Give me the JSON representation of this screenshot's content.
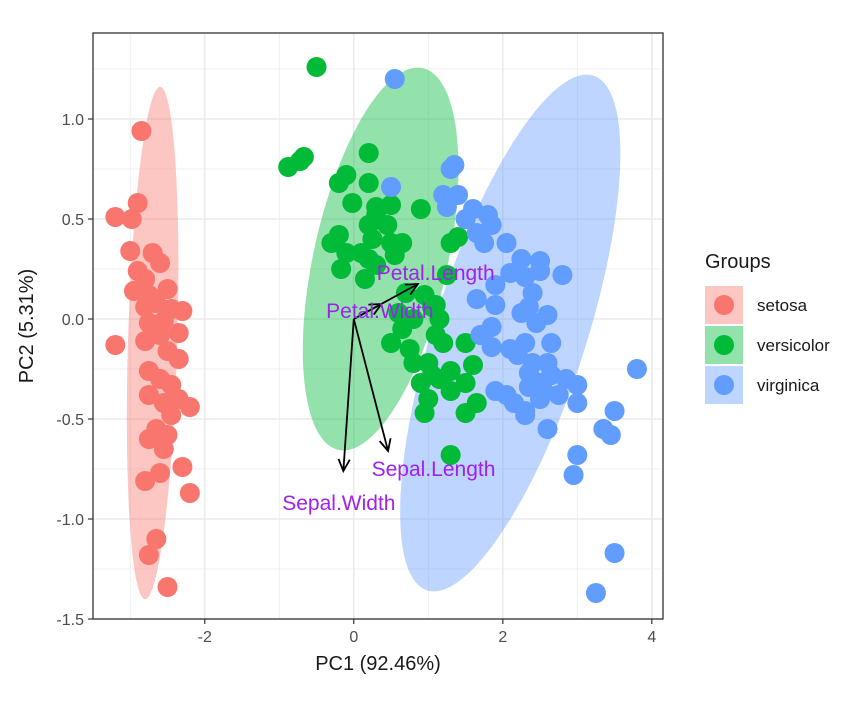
{
  "chart_data": {
    "type": "scatter",
    "title": "",
    "xlabel": "PC1 (92.46%)",
    "ylabel": "PC2 (5.31%)",
    "xlim": [
      -3.5,
      4.15
    ],
    "ylim": [
      -1.5,
      1.43
    ],
    "x_ticks": [
      -2,
      0,
      2,
      4
    ],
    "x_tick_labels": [
      "-2",
      "0",
      "2",
      "4"
    ],
    "y_ticks": [
      -1.5,
      -1.0,
      -0.5,
      0.0,
      0.5,
      1.0
    ],
    "y_tick_labels": [
      "-1.5",
      "-1.0",
      "-0.5",
      "0.0",
      "0.5",
      "1.0"
    ],
    "grid": true,
    "legend": {
      "title": "Groups",
      "position": "right",
      "entries": [
        {
          "label": "setosa",
          "color": "#f8766d"
        },
        {
          "label": "versicolor",
          "color": "#00ba38"
        },
        {
          "label": "virginica",
          "color": "#619cff"
        }
      ]
    },
    "series": [
      {
        "name": "setosa",
        "color": "#f8766d",
        "points": [
          [
            -2.85,
            0.94
          ],
          [
            -3.2,
            0.51
          ],
          [
            -2.9,
            0.58
          ],
          [
            -2.98,
            0.5
          ],
          [
            -3.0,
            0.34
          ],
          [
            -2.7,
            0.33
          ],
          [
            -2.9,
            0.24
          ],
          [
            -2.8,
            0.2
          ],
          [
            -2.6,
            0.28
          ],
          [
            -2.95,
            0.14
          ],
          [
            -2.75,
            0.12
          ],
          [
            -2.5,
            0.15
          ],
          [
            -2.8,
            0.06
          ],
          [
            -2.65,
            0.08
          ],
          [
            -2.45,
            0.05
          ],
          [
            -2.3,
            0.04
          ],
          [
            -2.75,
            -0.02
          ],
          [
            -2.55,
            -0.01
          ],
          [
            -3.2,
            -0.13
          ],
          [
            -2.6,
            -0.08
          ],
          [
            -2.35,
            -0.07
          ],
          [
            -2.8,
            -0.11
          ],
          [
            -2.5,
            -0.16
          ],
          [
            -2.35,
            -0.2
          ],
          [
            -2.75,
            -0.26
          ],
          [
            -2.6,
            -0.3
          ],
          [
            -2.45,
            -0.33
          ],
          [
            -2.75,
            -0.38
          ],
          [
            -2.55,
            -0.42
          ],
          [
            -2.35,
            -0.4
          ],
          [
            -2.2,
            -0.44
          ],
          [
            -2.45,
            -0.48
          ],
          [
            -2.65,
            -0.55
          ],
          [
            -2.5,
            -0.58
          ],
          [
            -2.75,
            -0.6
          ],
          [
            -2.55,
            -0.65
          ],
          [
            -2.3,
            -0.74
          ],
          [
            -2.6,
            -0.77
          ],
          [
            -2.8,
            -0.81
          ],
          [
            -2.2,
            -0.87
          ],
          [
            -2.65,
            -1.1
          ],
          [
            -2.75,
            -1.18
          ],
          [
            -2.5,
            -1.34
          ]
        ]
      },
      {
        "name": "versicolor",
        "color": "#00ba38",
        "points": [
          [
            -0.5,
            1.26
          ],
          [
            -0.72,
            0.79
          ],
          [
            -0.67,
            0.81
          ],
          [
            -0.88,
            0.76
          ],
          [
            0.2,
            0.83
          ],
          [
            -0.2,
            0.68
          ],
          [
            -0.1,
            0.72
          ],
          [
            0.2,
            0.68
          ],
          [
            0.5,
            0.57
          ],
          [
            -0.02,
            0.58
          ],
          [
            0.3,
            0.56
          ],
          [
            0.3,
            0.52
          ],
          [
            0.45,
            0.47
          ],
          [
            0.2,
            0.47
          ],
          [
            -0.2,
            0.42
          ],
          [
            0.25,
            0.4
          ],
          [
            0.5,
            0.38
          ],
          [
            0.9,
            0.55
          ],
          [
            0.65,
            0.38
          ],
          [
            -0.3,
            0.38
          ],
          [
            -0.1,
            0.33
          ],
          [
            0.1,
            0.33
          ],
          [
            0.3,
            0.27
          ],
          [
            0.2,
            0.3
          ],
          [
            -0.17,
            0.25
          ],
          [
            0.15,
            0.2
          ],
          [
            0.55,
            0.32
          ],
          [
            1.3,
            0.38
          ],
          [
            1.4,
            0.41
          ],
          [
            1.25,
            0.22
          ],
          [
            0.7,
            0.13
          ],
          [
            0.95,
            0.12
          ],
          [
            1.1,
            0.07
          ],
          [
            0.6,
            0.03
          ],
          [
            0.8,
            0.0
          ],
          [
            1.05,
            0.06
          ],
          [
            1.15,
            0.0
          ],
          [
            0.65,
            -0.05
          ],
          [
            1.1,
            -0.08
          ],
          [
            0.5,
            -0.12
          ],
          [
            0.75,
            -0.15
          ],
          [
            1.2,
            -0.12
          ],
          [
            1.5,
            -0.12
          ],
          [
            0.8,
            -0.22
          ],
          [
            1.0,
            -0.22
          ],
          [
            1.05,
            -0.28
          ],
          [
            1.3,
            -0.26
          ],
          [
            1.6,
            -0.23
          ],
          [
            0.9,
            -0.32
          ],
          [
            1.15,
            -0.3
          ],
          [
            1.5,
            -0.32
          ],
          [
            1.3,
            -0.36
          ],
          [
            1.0,
            -0.4
          ],
          [
            1.65,
            -0.42
          ],
          [
            0.95,
            -0.47
          ],
          [
            1.5,
            -0.47
          ],
          [
            1.3,
            -0.68
          ]
        ]
      },
      {
        "name": "virginica",
        "color": "#619cff",
        "points": [
          [
            0.55,
            1.2
          ],
          [
            1.35,
            0.77
          ],
          [
            1.3,
            0.75
          ],
          [
            0.5,
            0.66
          ],
          [
            1.2,
            0.62
          ],
          [
            1.4,
            0.62
          ],
          [
            1.25,
            0.56
          ],
          [
            1.6,
            0.55
          ],
          [
            1.8,
            0.52
          ],
          [
            1.5,
            0.5
          ],
          [
            1.85,
            0.47
          ],
          [
            1.65,
            0.43
          ],
          [
            1.75,
            0.38
          ],
          [
            2.05,
            0.38
          ],
          [
            2.25,
            0.3
          ],
          [
            2.5,
            0.29
          ],
          [
            2.1,
            0.23
          ],
          [
            2.3,
            0.21
          ],
          [
            2.5,
            0.24
          ],
          [
            2.8,
            0.22
          ],
          [
            1.9,
            0.17
          ],
          [
            2.4,
            0.13
          ],
          [
            1.65,
            0.1
          ],
          [
            1.9,
            0.07
          ],
          [
            2.35,
            0.06
          ],
          [
            2.25,
            0.03
          ],
          [
            2.6,
            0.02
          ],
          [
            2.45,
            -0.02
          ],
          [
            1.85,
            -0.04
          ],
          [
            1.7,
            -0.08
          ],
          [
            2.3,
            -0.12
          ],
          [
            2.65,
            -0.12
          ],
          [
            1.85,
            -0.14
          ],
          [
            2.1,
            -0.15
          ],
          [
            2.2,
            -0.18
          ],
          [
            2.4,
            -0.22
          ],
          [
            2.6,
            -0.22
          ],
          [
            2.35,
            -0.27
          ],
          [
            2.65,
            -0.28
          ],
          [
            2.85,
            -0.3
          ],
          [
            2.5,
            -0.32
          ],
          [
            2.35,
            -0.34
          ],
          [
            1.9,
            -0.36
          ],
          [
            2.05,
            -0.38
          ],
          [
            2.55,
            -0.36
          ],
          [
            2.15,
            -0.42
          ],
          [
            2.75,
            -0.38
          ],
          [
            3.0,
            -0.33
          ],
          [
            3.8,
            -0.25
          ],
          [
            2.3,
            -0.46
          ],
          [
            2.5,
            -0.4
          ],
          [
            3.0,
            -0.42
          ],
          [
            2.3,
            -0.48
          ],
          [
            3.5,
            -0.46
          ],
          [
            2.6,
            -0.55
          ],
          [
            3.35,
            -0.55
          ],
          [
            3.45,
            -0.58
          ],
          [
            3.0,
            -0.68
          ],
          [
            2.95,
            -0.78
          ],
          [
            3.5,
            -1.17
          ],
          [
            3.25,
            -1.37
          ]
        ]
      }
    ],
    "ellipses": [
      {
        "group": "setosa",
        "cx": -2.7,
        "cy": -0.12,
        "semi_major": 1.285,
        "semi_minor": 0.33,
        "angle_deg": 85.2,
        "color": "#f8766d"
      },
      {
        "group": "versicolor",
        "cx": 0.36,
        "cy": 0.3,
        "semi_major": 1.22,
        "semi_minor": 0.72,
        "angle_deg": 39.8,
        "color": "#00ba38"
      },
      {
        "group": "virginica",
        "cx": 2.1,
        "cy": -0.07,
        "semi_major": 1.81,
        "semi_minor": 0.76,
        "angle_deg": 39.5,
        "color": "#619cff"
      }
    ],
    "loadings": [
      {
        "label": "Petal.Length",
        "x": 0.86,
        "y": 0.175
      },
      {
        "label": "Petal.Width",
        "x": 0.37,
        "y": 0.075
      },
      {
        "label": "Sepal.Length",
        "x": 0.46,
        "y": -0.66
      },
      {
        "label": "Sepal.Width",
        "x": -0.14,
        "y": -0.76
      }
    ],
    "loading_labels": [
      {
        "label": "Petal.Length",
        "x": 1.1,
        "y": 0.23
      },
      {
        "label": "Petal.Width",
        "x": 0.35,
        "y": 0.04
      },
      {
        "label": "Sepal.Length",
        "x": 1.07,
        "y": -0.75
      },
      {
        "label": "Sepal.Width",
        "x": -0.2,
        "y": -0.92
      }
    ],
    "loading_label_color": "#a020f0",
    "arrow_color": "#000000"
  }
}
